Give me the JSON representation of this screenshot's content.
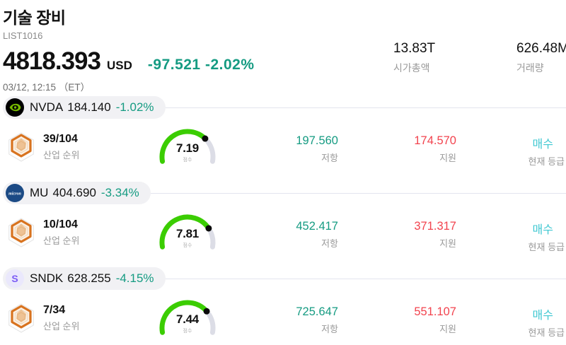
{
  "header": {
    "title": "기술 장비",
    "list_id": "LIST1016",
    "price": "4818.393",
    "currency": "USD",
    "change": "-97.521 -2.02%",
    "datetime": "03/12, 12:15 （ET）",
    "market_cap": {
      "value": "13.83T",
      "label": "시가총액"
    },
    "volume": {
      "value": "626.48M",
      "label": "거래량"
    }
  },
  "labels": {
    "rank": "산업 순위",
    "score": "점수",
    "resistance": "저항",
    "support": "지원",
    "rating": "현재 등급"
  },
  "colors": {
    "teal": "#159b82",
    "red": "#f2434e",
    "cyan": "#41c8d2",
    "gauge_green": "#3bcd02",
    "orange": "#d8731f"
  },
  "stocks": [
    {
      "ticker": "NVDA",
      "price": "184.140",
      "change": "-1.02%",
      "rank": "39/104",
      "score": "7.19",
      "resistance": "197.560",
      "support": "174.570",
      "rating": "매수",
      "logo": "nvidia-logo",
      "logo_text": ""
    },
    {
      "ticker": "MU",
      "price": "404.690",
      "change": "-3.34%",
      "rank": "10/104",
      "score": "7.81",
      "resistance": "452.417",
      "support": "371.317",
      "rating": "매수",
      "logo": "micron-logo",
      "logo_text": "micron"
    },
    {
      "ticker": "SNDK",
      "price": "628.255",
      "change": "-4.15%",
      "rank": "7/34",
      "score": "7.44",
      "resistance": "725.647",
      "support": "551.107",
      "rating": "매수",
      "logo": "sandisk-logo",
      "logo_text": "S"
    }
  ]
}
